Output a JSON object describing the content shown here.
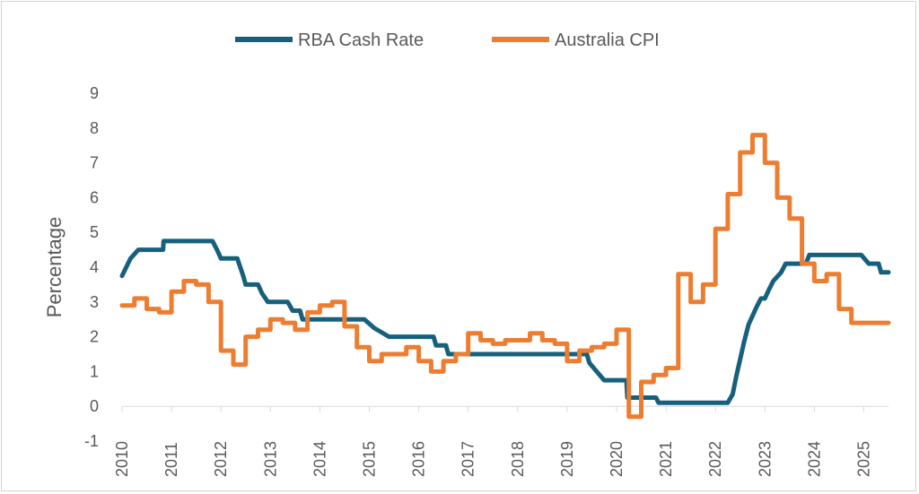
{
  "chart_data": {
    "type": "line",
    "title": "",
    "xlabel": "",
    "ylabel": "Percentage",
    "xlim": [
      2010,
      2025.5
    ],
    "ylim": [
      -1,
      9
    ],
    "yticks": [
      -1,
      0,
      1,
      2,
      3,
      4,
      5,
      6,
      7,
      8,
      9
    ],
    "xticks": [
      2010,
      2011,
      2012,
      2013,
      2014,
      2015,
      2016,
      2017,
      2018,
      2019,
      2020,
      2021,
      2022,
      2023,
      2024,
      2025
    ],
    "grid": false,
    "legend_position": "top",
    "series": [
      {
        "name": "RBA Cash Rate",
        "color": "#17607d",
        "step": false,
        "points": [
          [
            2010.0,
            3.75
          ],
          [
            2010.17,
            4.25
          ],
          [
            2010.33,
            4.5
          ],
          [
            2010.83,
            4.5
          ],
          [
            2010.84,
            4.75
          ],
          [
            2011.83,
            4.75
          ],
          [
            2011.92,
            4.5
          ],
          [
            2012.0,
            4.25
          ],
          [
            2012.33,
            4.25
          ],
          [
            2012.45,
            3.75
          ],
          [
            2012.5,
            3.5
          ],
          [
            2012.75,
            3.5
          ],
          [
            2012.83,
            3.25
          ],
          [
            2012.95,
            3.0
          ],
          [
            2013.35,
            3.0
          ],
          [
            2013.45,
            2.75
          ],
          [
            2013.6,
            2.75
          ],
          [
            2013.65,
            2.5
          ],
          [
            2014.9,
            2.5
          ],
          [
            2015.1,
            2.25
          ],
          [
            2015.4,
            2.0
          ],
          [
            2016.3,
            2.0
          ],
          [
            2016.35,
            1.75
          ],
          [
            2016.55,
            1.75
          ],
          [
            2016.6,
            1.5
          ],
          [
            2019.4,
            1.5
          ],
          [
            2019.45,
            1.25
          ],
          [
            2019.6,
            1.0
          ],
          [
            2019.75,
            0.75
          ],
          [
            2020.2,
            0.75
          ],
          [
            2020.22,
            0.25
          ],
          [
            2020.8,
            0.25
          ],
          [
            2020.85,
            0.1
          ],
          [
            2022.25,
            0.1
          ],
          [
            2022.35,
            0.35
          ],
          [
            2022.42,
            0.85
          ],
          [
            2022.5,
            1.35
          ],
          [
            2022.58,
            1.85
          ],
          [
            2022.67,
            2.35
          ],
          [
            2022.75,
            2.6
          ],
          [
            2022.83,
            2.85
          ],
          [
            2022.92,
            3.1
          ],
          [
            2023.0,
            3.1
          ],
          [
            2023.08,
            3.35
          ],
          [
            2023.17,
            3.6
          ],
          [
            2023.33,
            3.85
          ],
          [
            2023.42,
            4.1
          ],
          [
            2023.83,
            4.1
          ],
          [
            2023.9,
            4.35
          ],
          [
            2024.95,
            4.35
          ],
          [
            2025.1,
            4.1
          ],
          [
            2025.3,
            4.1
          ],
          [
            2025.35,
            3.85
          ],
          [
            2025.5,
            3.85
          ]
        ]
      },
      {
        "name": "Australia CPI",
        "color": "#ed7d31",
        "step": true,
        "points": [
          [
            2010.0,
            2.9
          ],
          [
            2010.25,
            3.1
          ],
          [
            2010.5,
            2.8
          ],
          [
            2010.75,
            2.7
          ],
          [
            2011.0,
            3.3
          ],
          [
            2011.25,
            3.6
          ],
          [
            2011.5,
            3.5
          ],
          [
            2011.75,
            3.0
          ],
          [
            2012.0,
            1.6
          ],
          [
            2012.25,
            1.2
          ],
          [
            2012.5,
            2.0
          ],
          [
            2012.75,
            2.2
          ],
          [
            2013.0,
            2.5
          ],
          [
            2013.25,
            2.4
          ],
          [
            2013.5,
            2.2
          ],
          [
            2013.75,
            2.7
          ],
          [
            2014.0,
            2.9
          ],
          [
            2014.25,
            3.0
          ],
          [
            2014.5,
            2.3
          ],
          [
            2014.75,
            1.7
          ],
          [
            2015.0,
            1.3
          ],
          [
            2015.25,
            1.5
          ],
          [
            2015.5,
            1.5
          ],
          [
            2015.75,
            1.7
          ],
          [
            2016.0,
            1.3
          ],
          [
            2016.25,
            1.0
          ],
          [
            2016.5,
            1.3
          ],
          [
            2016.75,
            1.5
          ],
          [
            2017.0,
            2.1
          ],
          [
            2017.25,
            1.9
          ],
          [
            2017.5,
            1.8
          ],
          [
            2017.75,
            1.9
          ],
          [
            2018.0,
            1.9
          ],
          [
            2018.25,
            2.1
          ],
          [
            2018.5,
            1.9
          ],
          [
            2018.75,
            1.8
          ],
          [
            2019.0,
            1.3
          ],
          [
            2019.25,
            1.6
          ],
          [
            2019.5,
            1.7
          ],
          [
            2019.75,
            1.8
          ],
          [
            2020.0,
            2.2
          ],
          [
            2020.25,
            -0.3
          ],
          [
            2020.5,
            0.7
          ],
          [
            2020.75,
            0.9
          ],
          [
            2021.0,
            1.1
          ],
          [
            2021.25,
            3.8
          ],
          [
            2021.5,
            3.0
          ],
          [
            2021.75,
            3.5
          ],
          [
            2022.0,
            5.1
          ],
          [
            2022.25,
            6.1
          ],
          [
            2022.5,
            7.3
          ],
          [
            2022.75,
            7.8
          ],
          [
            2023.0,
            7.0
          ],
          [
            2023.25,
            6.0
          ],
          [
            2023.5,
            5.4
          ],
          [
            2023.75,
            4.1
          ],
          [
            2024.0,
            3.6
          ],
          [
            2024.25,
            3.8
          ],
          [
            2024.5,
            2.8
          ],
          [
            2024.75,
            2.4
          ],
          [
            2025.0,
            2.4
          ],
          [
            2025.25,
            2.4
          ],
          [
            2025.5,
            2.4
          ]
        ]
      }
    ]
  }
}
